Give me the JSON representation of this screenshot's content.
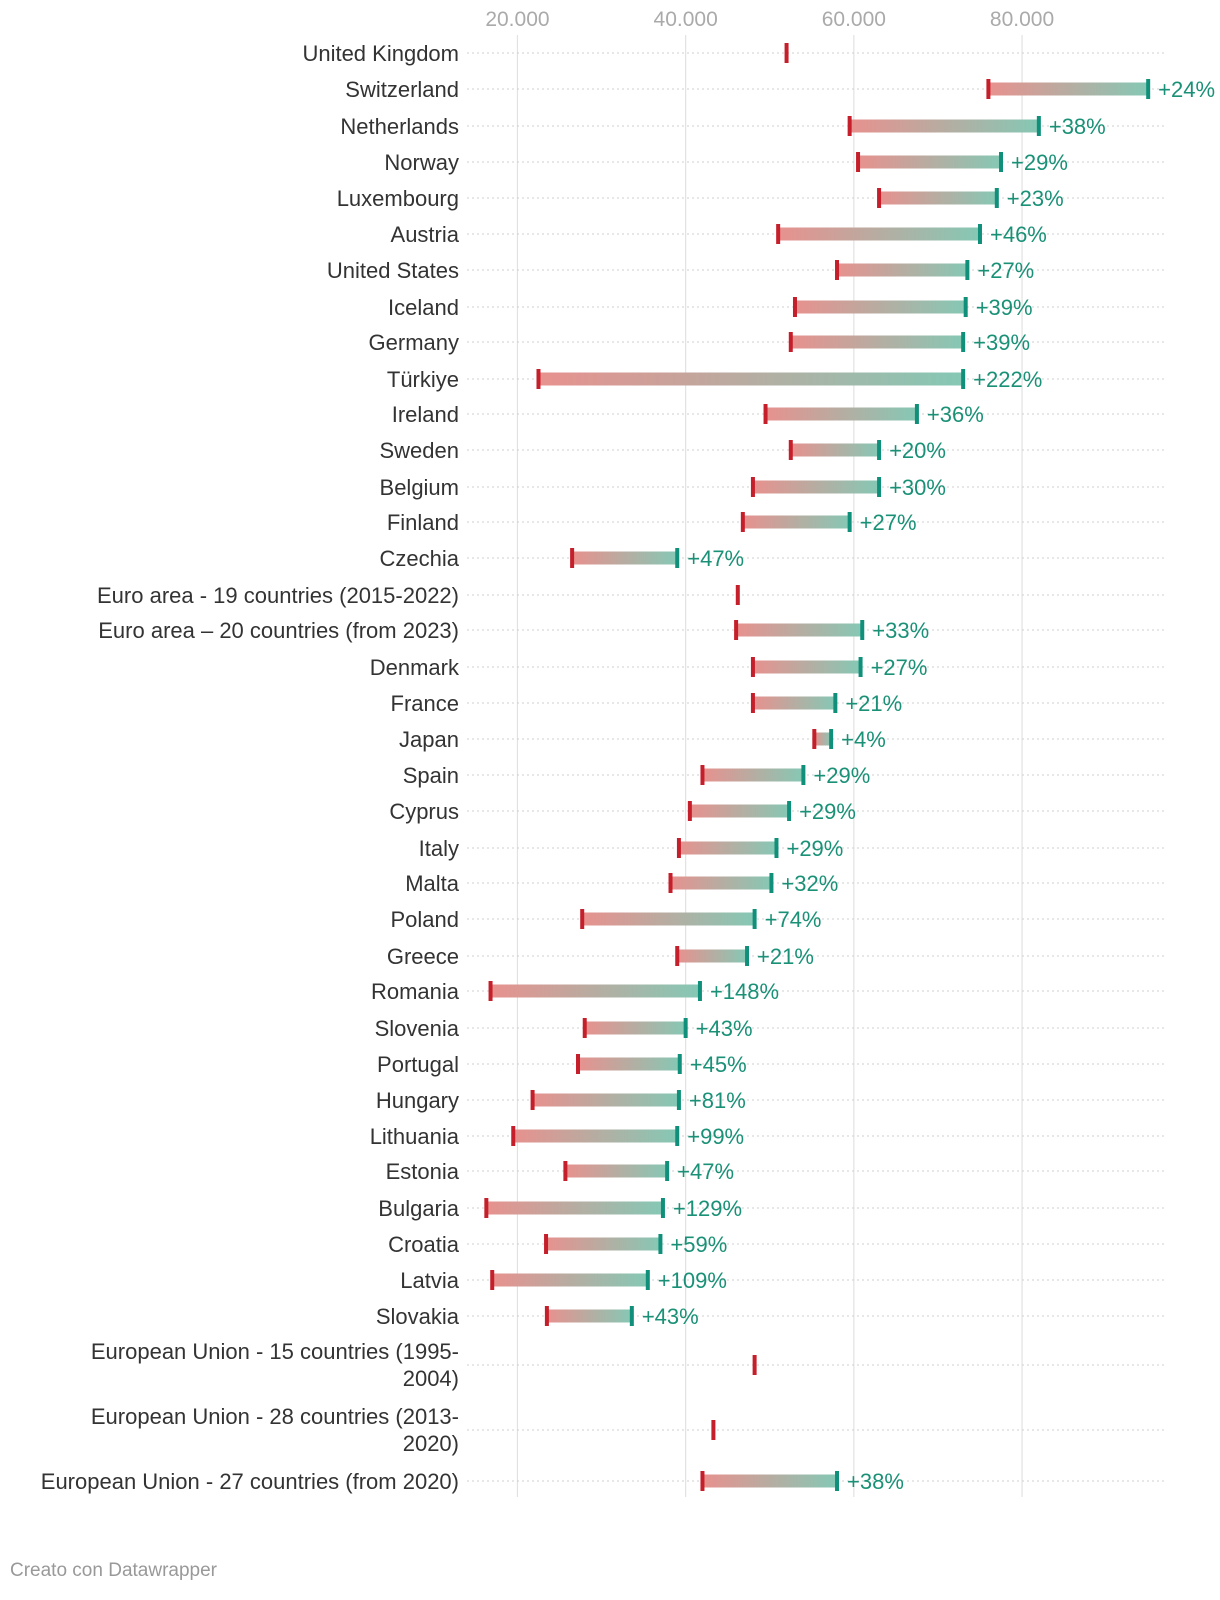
{
  "colors": {
    "start": "#c41f2a",
    "end": "#10907a",
    "bar_start": "#e8918e",
    "bar_end": "#85c8b5",
    "label": "#333333",
    "tick": "#aaaaaa",
    "pct": "#1a9177",
    "credit": "#999999"
  },
  "credit": "Creato con Datawrapper",
  "chart_data": {
    "type": "range",
    "title": "",
    "xlabel": "",
    "ylabel": "",
    "xlim": [
      14000,
      97000
    ],
    "x_ticks": [
      20000,
      40000,
      60000,
      80000
    ],
    "x_tick_labels": [
      "20.000",
      "40.000",
      "60.000",
      "80.000"
    ],
    "rows": [
      {
        "name": "United Kingdom",
        "start": 52000,
        "end": null,
        "change": ""
      },
      {
        "name": "Switzerland",
        "start": 76000,
        "end": 95000,
        "change": "+24%"
      },
      {
        "name": "Netherlands",
        "start": 59500,
        "end": 82000,
        "change": "+38%"
      },
      {
        "name": "Norway",
        "start": 60500,
        "end": 77500,
        "change": "+29%"
      },
      {
        "name": "Luxembourg",
        "start": 63000,
        "end": 77000,
        "change": "+23%"
      },
      {
        "name": "Austria",
        "start": 51000,
        "end": 75000,
        "change": "+46%"
      },
      {
        "name": "United States",
        "start": 58000,
        "end": 73500,
        "change": "+27%"
      },
      {
        "name": "Iceland",
        "start": 53000,
        "end": 73300,
        "change": "+39%"
      },
      {
        "name": "Germany",
        "start": 52500,
        "end": 73000,
        "change": "+39%"
      },
      {
        "name": "Türkiye",
        "start": 22500,
        "end": 73000,
        "change": "+222%"
      },
      {
        "name": "Ireland",
        "start": 49500,
        "end": 67500,
        "change": "+36%"
      },
      {
        "name": "Sweden",
        "start": 52500,
        "end": 63000,
        "change": "+20%"
      },
      {
        "name": "Belgium",
        "start": 48000,
        "end": 63000,
        "change": "+30%"
      },
      {
        "name": "Finland",
        "start": 46800,
        "end": 59500,
        "change": "+27%"
      },
      {
        "name": "Czechia",
        "start": 26500,
        "end": 39000,
        "change": "+47%"
      },
      {
        "name": "Euro area - 19 countries (2015-2022)",
        "start": 46200,
        "end": null,
        "change": ""
      },
      {
        "name": "Euro area – 20 countries (from 2023)",
        "start": 46000,
        "end": 61000,
        "change": "+33%"
      },
      {
        "name": "Denmark",
        "start": 48000,
        "end": 60800,
        "change": "+27%"
      },
      {
        "name": "France",
        "start": 48000,
        "end": 57800,
        "change": "+21%"
      },
      {
        "name": "Japan",
        "start": 55300,
        "end": 57300,
        "change": "+4%"
      },
      {
        "name": "Spain",
        "start": 42000,
        "end": 54000,
        "change": "+29%"
      },
      {
        "name": "Cyprus",
        "start": 40500,
        "end": 52300,
        "change": "+29%"
      },
      {
        "name": "Italy",
        "start": 39200,
        "end": 50800,
        "change": "+29%"
      },
      {
        "name": "Malta",
        "start": 38200,
        "end": 50200,
        "change": "+32%"
      },
      {
        "name": "Poland",
        "start": 27700,
        "end": 48200,
        "change": "+74%"
      },
      {
        "name": "Greece",
        "start": 39000,
        "end": 47300,
        "change": "+21%"
      },
      {
        "name": "Romania",
        "start": 16800,
        "end": 41700,
        "change": "+148%"
      },
      {
        "name": "Slovenia",
        "start": 28000,
        "end": 40000,
        "change": "+43%"
      },
      {
        "name": "Portugal",
        "start": 27200,
        "end": 39300,
        "change": "+45%"
      },
      {
        "name": "Hungary",
        "start": 21800,
        "end": 39200,
        "change": "+81%"
      },
      {
        "name": "Lithuania",
        "start": 19500,
        "end": 39000,
        "change": "+99%"
      },
      {
        "name": "Estonia",
        "start": 25700,
        "end": 37800,
        "change": "+47%"
      },
      {
        "name": "Bulgaria",
        "start": 16300,
        "end": 37300,
        "change": "+129%"
      },
      {
        "name": "Croatia",
        "start": 23400,
        "end": 37000,
        "change": "+59%"
      },
      {
        "name": "Latvia",
        "start": 17000,
        "end": 35500,
        "change": "+109%"
      },
      {
        "name": "Slovakia",
        "start": 23500,
        "end": 33600,
        "change": "+43%"
      },
      {
        "name": "European Union - 15 countries (1995-2004)",
        "start": 48200,
        "end": null,
        "change": ""
      },
      {
        "name": "European Union - 28 countries (2013-2020)",
        "start": 43300,
        "end": null,
        "change": ""
      },
      {
        "name": "European Union - 27 countries (from 2020)",
        "start": 42000,
        "end": 58000,
        "change": "+38%"
      }
    ]
  }
}
